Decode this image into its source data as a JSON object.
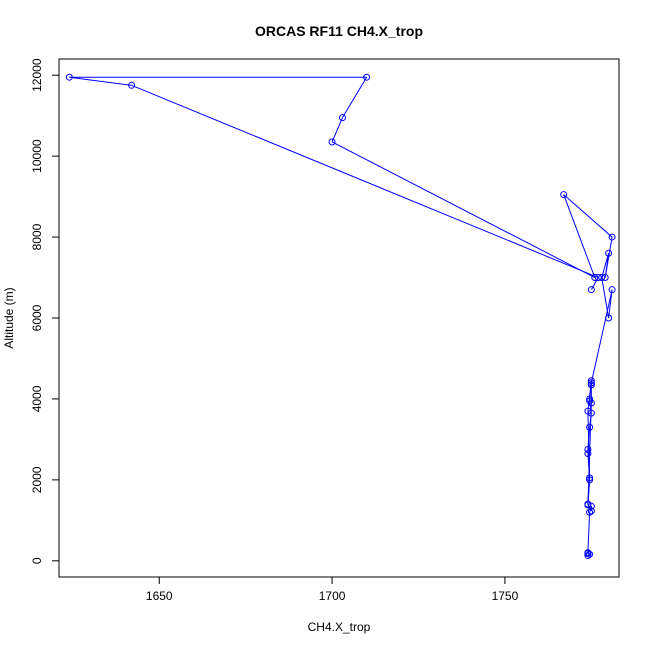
{
  "chart_data": {
    "type": "line",
    "title": "ORCAS RF11 CH4.X_trop",
    "xlabel": "CH4.X_trop",
    "ylabel": "Altitude (m)",
    "xlim": [
      1621,
      1783
    ],
    "ylim": [
      -400,
      12400
    ],
    "xticks": [
      1650,
      1700,
      1750
    ],
    "yticks": [
      0,
      2000,
      4000,
      6000,
      8000,
      10000,
      12000
    ],
    "grid": false,
    "legend": "none",
    "color": "#0000ff",
    "series": [
      {
        "marker": "open-circle",
        "x": [
          1774,
          1774.5,
          1774,
          1774,
          1774.5,
          1775,
          1775,
          1774,
          1774.5,
          1774,
          1774,
          1774.5,
          1775,
          1774.5,
          1774.5,
          1775,
          1775,
          1774,
          1774.5,
          1774,
          1775,
          1775,
          1775,
          1781,
          1780,
          1778,
          1780,
          1779,
          1781,
          1767,
          1776,
          1700,
          1703,
          1710,
          1624,
          1642,
          1777,
          1775
        ],
        "y": [
          130,
          160,
          180,
          200,
          1200,
          1350,
          1230,
          1400,
          2000,
          2650,
          2750,
          3300,
          3650,
          3950,
          4000,
          4350,
          4450,
          3700,
          2050,
          1380,
          3900,
          4350,
          4400,
          6700,
          6000,
          7000,
          7600,
          7000,
          8000,
          9050,
          7000,
          10350,
          10950,
          11950,
          11950,
          11750,
          7000,
          6700
        ]
      }
    ]
  }
}
